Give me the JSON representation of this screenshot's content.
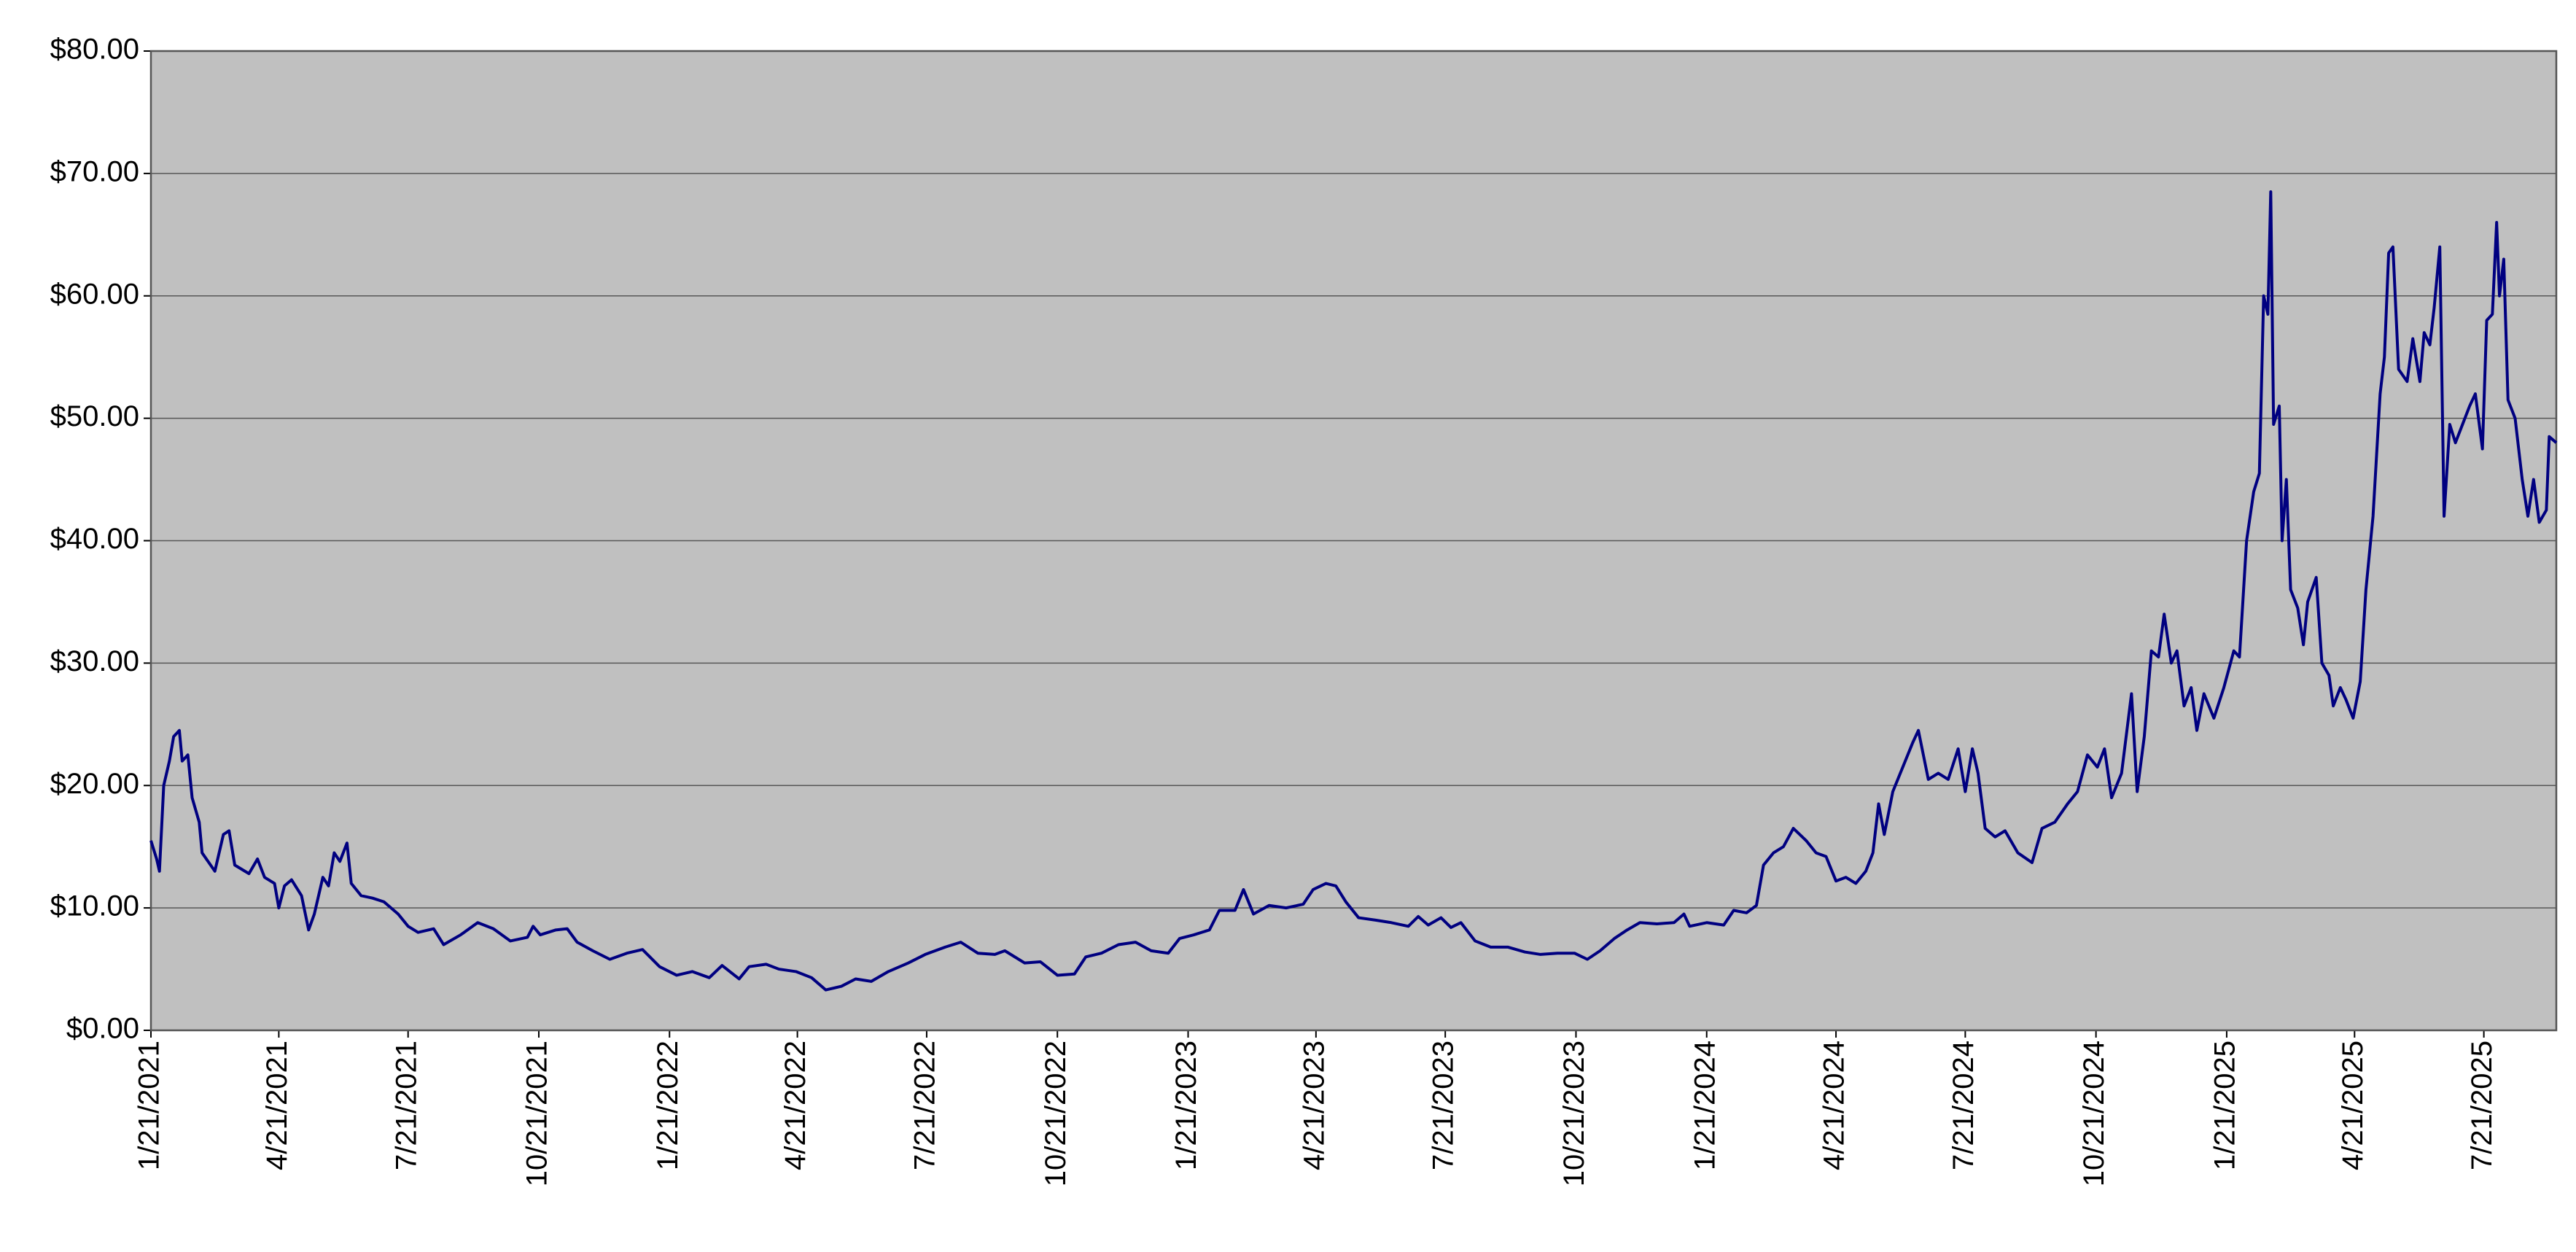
{
  "chart_data": {
    "type": "line",
    "color": "#000080",
    "plot_background": "#c0c0c0",
    "grid": true,
    "xlim": [
      "1/21/2021",
      "9/10/2025"
    ],
    "xticks": [
      "1/21/2021",
      "4/21/2021",
      "7/21/2021",
      "10/21/2021",
      "1/21/2022",
      "4/21/2022",
      "7/21/2022",
      "10/21/2022",
      "1/21/2023",
      "4/21/2023",
      "7/21/2023",
      "10/21/2023",
      "1/21/2024",
      "4/21/2024",
      "7/21/2024",
      "10/21/2024",
      "1/21/2025",
      "4/21/2025",
      "7/21/2025"
    ],
    "ylim": [
      0,
      80
    ],
    "yticks": [
      {
        "value": 0,
        "label": "$0.00"
      },
      {
        "value": 10,
        "label": "$10.00"
      },
      {
        "value": 20,
        "label": "$20.00"
      },
      {
        "value": 30,
        "label": "$30.00"
      },
      {
        "value": 40,
        "label": "$40.00"
      },
      {
        "value": 50,
        "label": "$50.00"
      },
      {
        "value": 60,
        "label": "$60.00"
      },
      {
        "value": 70,
        "label": "$70.00"
      },
      {
        "value": 80,
        "label": "$80.00"
      }
    ],
    "x": [
      "1/21/2021",
      "1/25/2021",
      "1/27/2021",
      "1/30/2021",
      "2/3/2021",
      "2/6/2021",
      "2/10/2021",
      "2/12/2021",
      "2/16/2021",
      "2/19/2021",
      "2/24/2021",
      "2/26/2021",
      "3/4/2021",
      "3/7/2021",
      "3/13/2021",
      "3/17/2021",
      "3/21/2021",
      "3/31/2021",
      "4/6/2021",
      "4/11/2021",
      "4/18/2021",
      "4/21/2021",
      "4/25/2021",
      "4/30/2021",
      "5/7/2021",
      "5/12/2021",
      "5/16/2021",
      "5/22/2021",
      "5/26/2021",
      "5/30/2021",
      "6/3/2021",
      "6/8/2021",
      "6/11/2021",
      "6/18/2021",
      "6/26/2021",
      "7/4/2021",
      "7/14/2021",
      "7/21/2021",
      "7/28/2021",
      "8/8/2021",
      "8/15/2021",
      "8/27/2021",
      "9/8/2021",
      "9/19/2021",
      "10/1/2021",
      "10/13/2021",
      "10/17/2021",
      "10/22/2021",
      "11/2/2021",
      "11/10/2021",
      "11/17/2021",
      "11/28/2021",
      "12/10/2021",
      "12/22/2021",
      "1/2/2022",
      "1/14/2022",
      "1/26/2022",
      "2/6/2022",
      "2/18/2022",
      "2/27/2022",
      "3/11/2022",
      "3/18/2022",
      "3/30/2022",
      "4/8/2022",
      "4/20/2022",
      "5/1/2022",
      "5/11/2022",
      "5/22/2022",
      "6/1/2022",
      "6/12/2022",
      "6/24/2022",
      "7/8/2022",
      "7/20/2022",
      "8/3/2022",
      "8/14/2022",
      "8/26/2022",
      "9/7/2022",
      "9/14/2022",
      "9/28/2022",
      "10/9/2022",
      "10/21/2022",
      "11/2/2022",
      "11/10/2022",
      "11/21/2022",
      "12/3/2022",
      "12/15/2022",
      "12/26/2022",
      "1/7/2023",
      "1/15/2023",
      "1/25/2023",
      "2/5/2023",
      "2/12/2023",
      "2/23/2023",
      "3/1/2023",
      "3/8/2023",
      "3/19/2023",
      "3/31/2023",
      "4/12/2023",
      "4/19/2023",
      "4/28/2023",
      "5/5/2023",
      "5/12/2023",
      "5/21/2023",
      "6/2/2023",
      "6/13/2023",
      "6/25/2023",
      "7/2/2023",
      "7/9/2023",
      "7/18/2023",
      "7/25/2023",
      "8/1/2023",
      "8/11/2023",
      "8/22/2023",
      "9/3/2023",
      "9/15/2023",
      "9/26/2023",
      "10/8/2023",
      "10/20/2023",
      "10/29/2023",
      "11/7/2023",
      "11/17/2023",
      "11/26/2023",
      "12/5/2023",
      "12/17/2023",
      "12/29/2023",
      "1/5/2024",
      "1/9/2024",
      "1/21/2024",
      "2/2/2024",
      "2/9/2024",
      "2/18/2024",
      "2/25/2024",
      "3/1/2024",
      "3/8/2024",
      "3/15/2024",
      "3/22/2024",
      "3/31/2024",
      "4/7/2024",
      "4/14/2024",
      "4/21/2024",
      "4/28/2024",
      "5/5/2024",
      "5/12/2024",
      "5/17/2024",
      "5/21/2024",
      "5/25/2024",
      "5/31/2024",
      "6/7/2024",
      "6/14/2024",
      "6/18/2024",
      "6/25/2024",
      "7/2/2024",
      "7/9/2024",
      "7/16/2024",
      "7/21/2024",
      "7/26/2024",
      "7/30/2024",
      "8/4/2024",
      "8/11/2024",
      "8/18/2024",
      "8/27/2024",
      "9/6/2024",
      "9/13/2024",
      "9/22/2024",
      "10/1/2024",
      "10/8/2024",
      "10/15/2024",
      "10/22/2024",
      "10/27/2024",
      "11/1/2024",
      "11/8/2024",
      "11/15/2024",
      "11/19/2024",
      "11/24/2024",
      "11/29/2024",
      "12/4/2024",
      "12/8/2024",
      "12/13/2024",
      "12/17/2024",
      "12/22/2024",
      "12/27/2024",
      "12/31/2024",
      "1/5/2025",
      "1/12/2025",
      "1/19/2025",
      "1/26/2025",
      "1/30/2025",
      "2/4/2025",
      "2/9/2025",
      "2/13/2025",
      "2/16/2025",
      "2/19/2025",
      "2/21/2025",
      "2/23/2025",
      "2/27/2025",
      "3/1/2025",
      "3/4/2025",
      "3/7/2025",
      "3/12/2025",
      "3/16/2025",
      "3/19/2025",
      "3/25/2025",
      "3/29/2025",
      "4/3/2025",
      "4/6/2025",
      "4/11/2025",
      "4/15/2025",
      "4/20/2025",
      "4/25/2025",
      "4/29/2025",
      "5/4/2025",
      "5/9/2025",
      "5/12/2025",
      "5/15/2025",
      "5/18/2025",
      "5/22/2025",
      "5/28/2025",
      "6/1/2025",
      "6/6/2025",
      "6/9/2025",
      "6/13/2025",
      "6/16/2025",
      "6/20/2025",
      "6/23/2025",
      "6/27/2025",
      "7/1/2025",
      "7/6/2025",
      "7/11/2025",
      "7/15/2025",
      "7/20/2025",
      "7/23/2025",
      "7/27/2025",
      "7/30/2025",
      "8/1/2025",
      "8/4/2025",
      "8/7/2025",
      "8/12/2025",
      "8/17/2025",
      "8/21/2025",
      "8/25/2025",
      "8/29/2025",
      "9/3/2025",
      "9/5/2025",
      "9/10/2025"
    ],
    "values": [
      15.5,
      14,
      13,
      20,
      22,
      24,
      24.5,
      22,
      22.5,
      19,
      17,
      14.5,
      13.5,
      13,
      16,
      16.3,
      13.5,
      12.8,
      14,
      12.5,
      12,
      10,
      11.8,
      12.3,
      11,
      8.2,
      9.5,
      12.5,
      11.8,
      14.5,
      13.8,
      15.3,
      12,
      11,
      10.8,
      10.5,
      9.5,
      8.5,
      8,
      8.3,
      7,
      7.8,
      8.8,
      8.3,
      7.3,
      7.6,
      8.5,
      7.8,
      8.2,
      8.3,
      7.2,
      6.5,
      5.8,
      6.3,
      6.6,
      5.2,
      4.5,
      4.8,
      4.3,
      5.3,
      4.2,
      5.2,
      5.4,
      5,
      4.8,
      4.3,
      3.3,
      3.6,
      4.2,
      4,
      4.8,
      5.5,
      6.2,
      6.8,
      7.2,
      6.3,
      6.2,
      6.5,
      5.5,
      5.6,
      4.5,
      4.6,
      6,
      6.3,
      7,
      7.2,
      6.5,
      6.3,
      7.5,
      7.8,
      8.2,
      9.8,
      9.8,
      11.5,
      9.5,
      10.2,
      10,
      10.3,
      11.5,
      12,
      11.8,
      10.5,
      9.2,
      9,
      8.8,
      8.5,
      9.3,
      8.6,
      9.2,
      8.4,
      8.8,
      7.3,
      6.8,
      6.8,
      6.4,
      6.2,
      6.3,
      6.3,
      5.8,
      6.5,
      7.5,
      8.2,
      8.8,
      8.7,
      8.8,
      9.5,
      8.5,
      8.8,
      8.6,
      9.8,
      9.6,
      10.2,
      13.5,
      14.5,
      15,
      16.5,
      15.5,
      14.5,
      14.2,
      12.2,
      12.5,
      12,
      13,
      14.5,
      18.5,
      16,
      19.5,
      21.5,
      23.5,
      24.5,
      20.5,
      21,
      20.5,
      23,
      19.5,
      23,
      21,
      16.5,
      15.8,
      16.3,
      14.5,
      13.7,
      16.5,
      17,
      18.5,
      19.5,
      22.5,
      21.5,
      23,
      19,
      21,
      27.5,
      19.5,
      24,
      31,
      30.5,
      34,
      30,
      31,
      26.5,
      28,
      24.5,
      27.5,
      25.5,
      28,
      31,
      30.5,
      40,
      44,
      45.5,
      60,
      58.5,
      68.5,
      49.5,
      51,
      40,
      45,
      36,
      34.5,
      31.5,
      35,
      37,
      30,
      29,
      26.5,
      28,
      27,
      25.5,
      28.5,
      36,
      42,
      52,
      55,
      63.5,
      64,
      54,
      53,
      56.5,
      53,
      57,
      56,
      59,
      64,
      42,
      49.5,
      48,
      49.5,
      51,
      52,
      47.5,
      58,
      58.5,
      66,
      60,
      63,
      51.5,
      50,
      45,
      42,
      45,
      41.5,
      42.5,
      48.5,
      48
    ]
  }
}
